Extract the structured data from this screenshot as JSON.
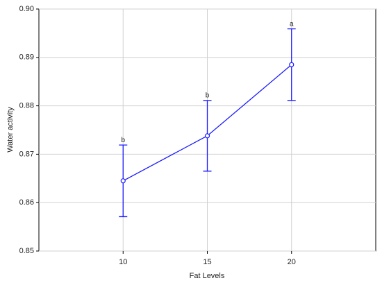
{
  "chart_data": {
    "type": "line",
    "x_label": "Fat Levels",
    "y_label": "Water activity",
    "x": [
      10,
      15,
      20
    ],
    "values": [
      0.8645,
      0.8738,
      0.8885
    ],
    "errors": [
      0.0074,
      0.0073,
      0.0074
    ],
    "point_labels": [
      "b",
      "b",
      "a"
    ],
    "color": "#1a1aff",
    "xlim": [
      5,
      25
    ],
    "xticks": [
      10,
      15,
      20
    ],
    "ylim": [
      0.85,
      0.9
    ],
    "yticks": [
      0.85,
      0.86,
      0.87,
      0.88,
      0.89,
      {
        "value": 0.9,
        "label": "0.90"
      }
    ],
    "grid": true
  }
}
